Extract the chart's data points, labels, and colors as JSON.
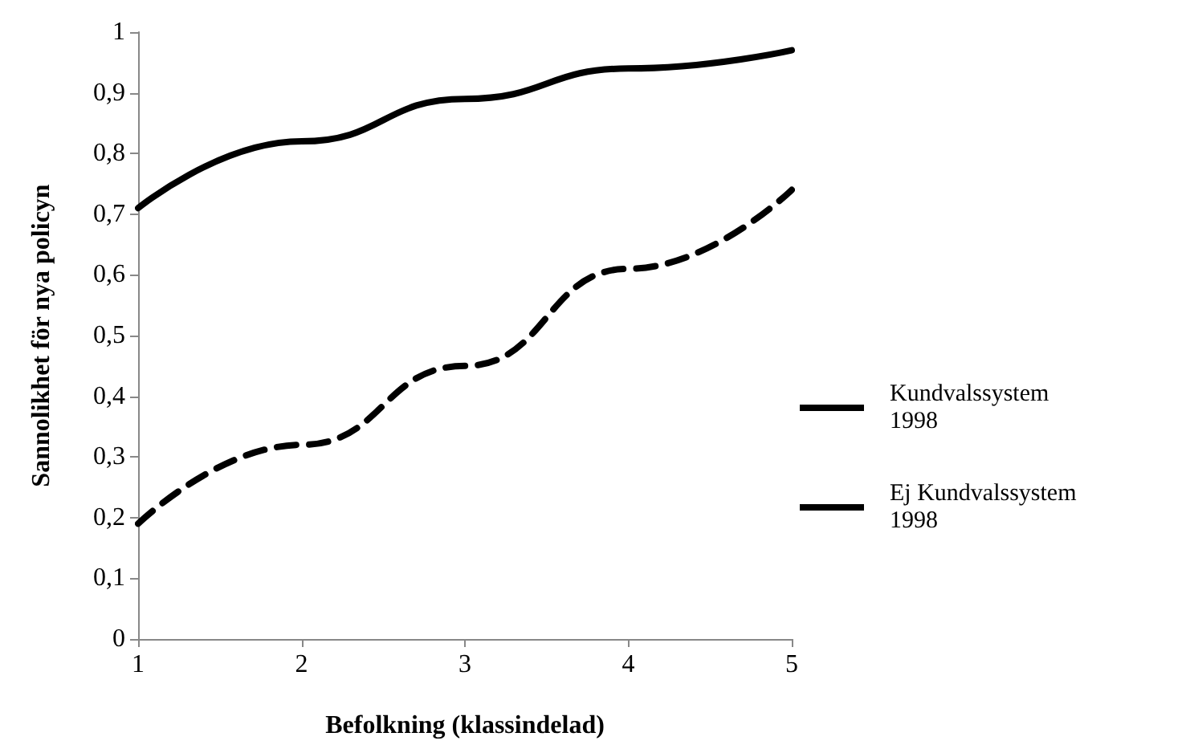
{
  "chart_data": {
    "type": "line",
    "xlabel": "Befolkning (klassindelad)",
    "ylabel": "Sannolikhet för nya policyn",
    "x": [
      1,
      2,
      3,
      4,
      5
    ],
    "xlim": [
      1,
      5
    ],
    "xticks": [
      1,
      2,
      3,
      4,
      5
    ],
    "ylim": [
      0,
      1
    ],
    "yticks": [
      0,
      {
        "value": 0.1,
        "label": "0,1"
      },
      {
        "value": 0.2,
        "label": "0,2"
      },
      {
        "value": 0.3,
        "label": "0,3"
      },
      {
        "value": 0.4,
        "label": "0,4"
      },
      {
        "value": 0.5,
        "label": "0,5"
      },
      {
        "value": 0.6,
        "label": "0,6"
      },
      {
        "value": 0.7,
        "label": "0,7"
      },
      {
        "value": 0.8,
        "label": "0,8"
      },
      {
        "value": 0.9,
        "label": "0,9"
      },
      1
    ],
    "series": [
      {
        "name": "Kundvalssystem 1998",
        "color": "#000000",
        "line_style": "solid",
        "values": [
          0.71,
          0.82,
          0.89,
          0.94,
          0.97
        ]
      },
      {
        "name": "Ej Kundvalssystem 1998",
        "color": "#000000",
        "line_style": "dashed",
        "values": [
          0.19,
          0.32,
          0.45,
          0.61,
          0.74
        ]
      }
    ],
    "grid": false,
    "legend": "right",
    "marker": "none"
  }
}
